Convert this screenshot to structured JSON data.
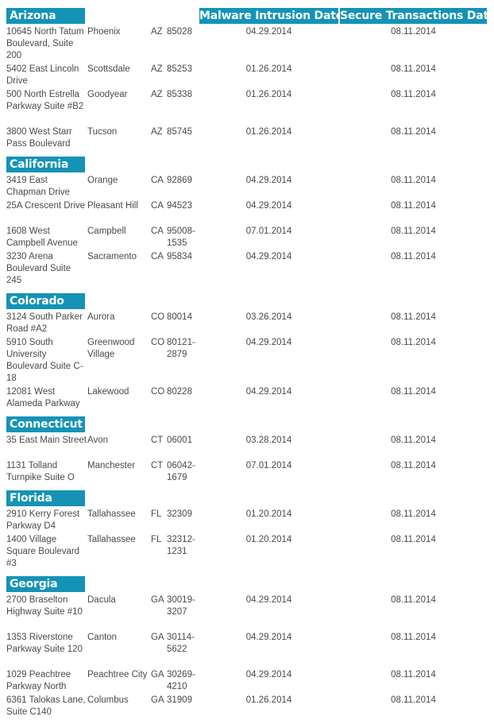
{
  "columns": {
    "malware": "Malware Intrusion Date",
    "secure": "Secure Transactions Date"
  },
  "groups": [
    {
      "state_name": "Arizona",
      "rows": [
        {
          "address": "10645 North Tatum Boulevard, Suite 200",
          "city": "Phoenix",
          "state": "AZ",
          "zip": "85028",
          "malware_date": "04.29.2014",
          "secure_date": "08.11.2014"
        },
        {
          "address": "5402 East Lincoln Drive",
          "city": "Scottsdale",
          "state": "AZ",
          "zip": "85253",
          "malware_date": "01.26.2014",
          "secure_date": "08.11.2014"
        },
        {
          "address": "500 North Estrella Parkway Suite #B2",
          "city": "Goodyear",
          "state": "AZ",
          "zip": "85338",
          "malware_date": "01.26.2014",
          "secure_date": "08.11.2014"
        },
        {
          "address": "3800 West Starr Pass Boulevard",
          "city": "Tucson",
          "state": "AZ",
          "zip": "85745",
          "malware_date": "01.26.2014",
          "secure_date": "08.11.2014"
        }
      ]
    },
    {
      "state_name": "California",
      "rows": [
        {
          "address": "3419 East Chapman Drive",
          "city": "Orange",
          "state": "CA",
          "zip": "92869",
          "malware_date": "04.29.2014",
          "secure_date": "08.11.2014"
        },
        {
          "address": "25A Crescent Drive",
          "city": "Pleasant Hill",
          "state": "CA",
          "zip": "94523",
          "malware_date": "04.29.2014",
          "secure_date": "08.11.2014"
        },
        {
          "address": "1608 West Campbell Avenue",
          "city": "Campbell",
          "state": "CA",
          "zip": "95008-1535",
          "malware_date": "07.01.2014",
          "secure_date": "08.11.2014"
        },
        {
          "address": "3230 Arena Boulevard Suite 245",
          "city": "Sacramento",
          "state": "CA",
          "zip": "95834",
          "malware_date": "04.29.2014",
          "secure_date": "08.11.2014"
        }
      ]
    },
    {
      "state_name": "Colorado",
      "rows": [
        {
          "address": "3124 South Parker Road #A2",
          "city": "Aurora",
          "state": "CO",
          "zip": "80014",
          "malware_date": "03.26.2014",
          "secure_date": "08.11.2014"
        },
        {
          "address": "5910 South University Boulevard Suite C-18",
          "city": "Greenwood Village",
          "state": "CO",
          "zip": "80121-2879",
          "malware_date": "04.29.2014",
          "secure_date": "08.11.2014"
        },
        {
          "address": "12081 West Alameda Parkway",
          "city": "Lakewood",
          "state": "CO",
          "zip": "80228",
          "malware_date": "04.29.2014",
          "secure_date": "08.11.2014"
        }
      ]
    },
    {
      "state_name": "Connecticut",
      "rows": [
        {
          "address": "35 East Main Street",
          "city": "Avon",
          "state": "CT",
          "zip": "06001",
          "malware_date": "03.28.2014",
          "secure_date": "08.11.2014"
        },
        {
          "address": "1131 Tolland Turnpike Suite O",
          "city": "Manchester",
          "state": "CT",
          "zip": "06042-1679",
          "malware_date": "07.01.2014",
          "secure_date": "08.11.2014"
        }
      ]
    },
    {
      "state_name": "Florida",
      "rows": [
        {
          "address": "2910 Kerry Forest Parkway D4",
          "city": "Tallahassee",
          "state": "FL",
          "zip": "32309",
          "malware_date": "01.20.2014",
          "secure_date": "08.11.2014"
        },
        {
          "address": "1400 Village Square Boulevard #3",
          "city": "Tallahassee",
          "state": "FL",
          "zip": "32312-1231",
          "malware_date": "01.20.2014",
          "secure_date": "08.11.2014"
        }
      ]
    },
    {
      "state_name": "Georgia",
      "rows": [
        {
          "address": "2700 Braselton Highway Suite #10",
          "city": "Dacula",
          "state": "GA",
          "zip": "30019-3207",
          "malware_date": "04.29.2014",
          "secure_date": "08.11.2014"
        },
        {
          "address": "1353 Riverstone Parkway Suite 120",
          "city": "Canton",
          "state": "GA",
          "zip": "30114-5622",
          "malware_date": "04.29.2014",
          "secure_date": "08.11.2014"
        },
        {
          "address": "1029 Peachtree Parkway North",
          "city": "Peachtree City",
          "state": "GA",
          "zip": "30269-4210",
          "malware_date": "04.29.2014",
          "secure_date": "08.11.2014"
        },
        {
          "address": "6361 Talokas Lane, Suite C140",
          "city": "Columbus",
          "state": "GA",
          "zip": "31909",
          "malware_date": "01.26.2014",
          "secure_date": "08.11.2014"
        }
      ]
    }
  ]
}
